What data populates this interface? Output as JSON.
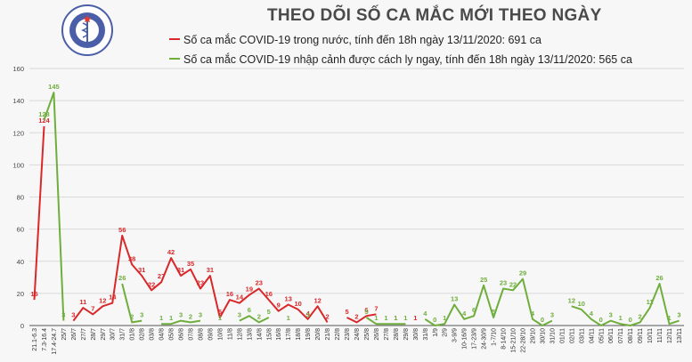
{
  "header": {
    "title": "THEO DÕI SỐ CA MẮC MỚI THEO NGÀY",
    "logo_text": "BỘ Y TẾ"
  },
  "colors": {
    "domestic": "#d8282a",
    "imported": "#6fae3d",
    "axis": "#555555",
    "grid": "#d9d9d9"
  },
  "chart_data": {
    "type": "line",
    "ylim": [
      0,
      160
    ],
    "yticks": [
      0,
      20,
      40,
      60,
      80,
      100,
      120,
      140,
      160
    ],
    "categories": [
      "21.1-6.3",
      "7.3-16.4",
      "17.4-24.7",
      "25/7",
      "26/7",
      "27/7",
      "28/7",
      "29/7",
      "30/7",
      "31/7",
      "01/8",
      "02/8",
      "03/8",
      "04/8",
      "05/8",
      "06/8",
      "07/8",
      "08/8",
      "09/8",
      "10/8",
      "11/8",
      "12/8",
      "13/8",
      "14/8",
      "15/8",
      "16/8",
      "17/8",
      "18/8",
      "19/8",
      "20/8",
      "21/8",
      "22/8",
      "23/8",
      "24/8",
      "25/8",
      "26/8",
      "27/8",
      "28/8",
      "29/8",
      "30/8",
      "31/8",
      "1/9",
      "2/9",
      "3-9/9",
      "10-16/9",
      "17-23/9",
      "24-30/9",
      "1-7/10",
      "8-14/10",
      "15-21/10",
      "22-28/10",
      "29/10",
      "30/10",
      "31/10",
      "01/11",
      "02/11",
      "03/11",
      "04/11",
      "05/11",
      "06/11",
      "07/11",
      "08/11",
      "09/11",
      "10/11",
      "11/11",
      "12/11",
      "13/11"
    ],
    "series": [
      {
        "name": "Số ca mắc COVID-19 trong nước, tính đến 18h ngày 13/11/2020: 691 ca",
        "color": "#d8282a",
        "values": [
          16,
          124,
          null,
          null,
          3,
          11,
          7,
          12,
          14,
          56,
          38,
          31,
          22,
          27,
          42,
          31,
          35,
          23,
          31,
          5,
          16,
          14,
          19,
          23,
          16,
          9,
          13,
          10,
          4,
          12,
          2,
          null,
          5,
          2,
          6,
          7,
          null,
          1,
          null,
          1,
          null,
          null,
          null,
          null,
          null,
          null,
          null,
          null,
          null,
          null,
          null,
          null,
          null,
          null,
          null,
          null,
          null,
          null,
          null,
          null,
          null,
          null,
          null,
          null,
          null,
          null,
          null
        ]
      },
      {
        "name": "Số ca mắc COVID-19 nhập cảnh được cách ly ngay, tính đến 18h ngày 13/11/2020: 565 ca",
        "color": "#6fae3d",
        "values": [
          null,
          128,
          145,
          3,
          null,
          null,
          null,
          null,
          null,
          26,
          2,
          3,
          null,
          1,
          1,
          3,
          2,
          3,
          null,
          1,
          null,
          3,
          6,
          2,
          5,
          null,
          1,
          null,
          3,
          null,
          null,
          null,
          null,
          null,
          5,
          1,
          1,
          1,
          1,
          null,
          4,
          0,
          1,
          13,
          4,
          6,
          25,
          5,
          23,
          22,
          29,
          4,
          0,
          3,
          null,
          12,
          10,
          4,
          0,
          3,
          1,
          0,
          2,
          11,
          26,
          1,
          3
        ]
      }
    ],
    "data_labels_show_zero": false
  }
}
